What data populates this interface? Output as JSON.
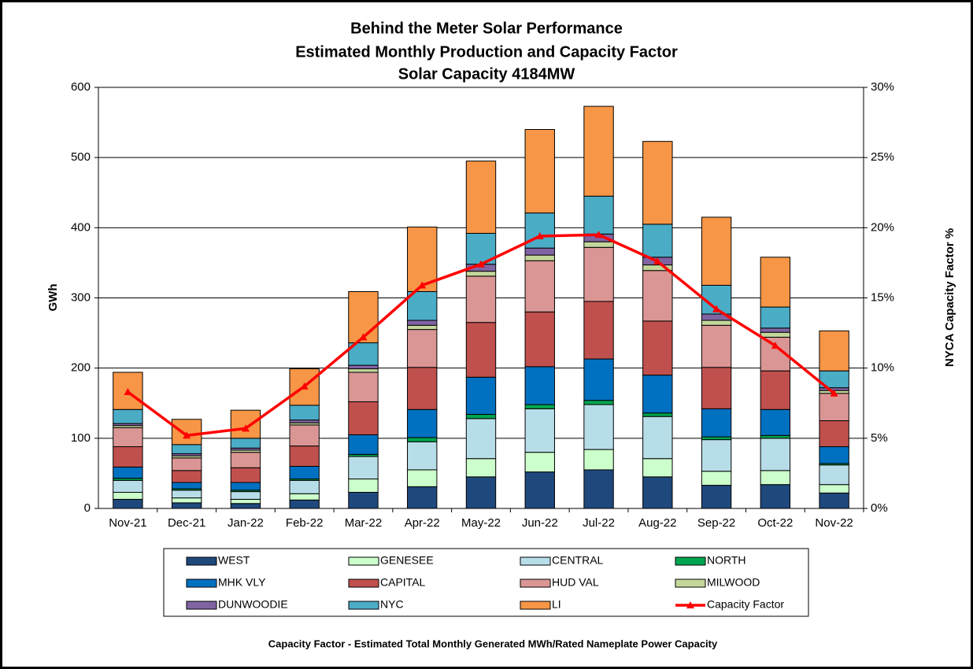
{
  "chart_data": {
    "type": "bar",
    "stacked": true,
    "title": [
      "Behind the Meter Solar Performance",
      "Estimated Monthly Production and Capacity Factor",
      "Solar Capacity 4184MW"
    ],
    "ylabel": "GWh",
    "y2label": "NYCA Capacity Factor %",
    "note": "Capacity Factor  - Estimated Total Monthly Generated MWh/Rated Nameplate Power Capacity",
    "categories": [
      "Nov-21",
      "Dec-21",
      "Jan-22",
      "Feb-22",
      "Mar-22",
      "Apr-22",
      "May-22",
      "Jun-22",
      "Jul-22",
      "Aug-22",
      "Sep-22",
      "Oct-22",
      "Nov-22"
    ],
    "ylim": [
      0,
      600
    ],
    "yticks": [
      0,
      100,
      200,
      300,
      400,
      500,
      600
    ],
    "y2lim": [
      0,
      30
    ],
    "y2ticks": [
      {
        "value": 0,
        "label": "0%"
      },
      {
        "value": 5,
        "label": "5%"
      },
      {
        "value": 10,
        "label": "10%"
      },
      {
        "value": 15,
        "label": "15%"
      },
      {
        "value": 20,
        "label": "20%"
      },
      {
        "value": 25,
        "label": "25%"
      },
      {
        "value": 30,
        "label": "30%"
      }
    ],
    "grid": true,
    "series": [
      {
        "name": "WEST",
        "color": "#1f497d",
        "values": [
          13,
          8,
          7,
          12,
          23,
          31,
          45,
          52,
          55,
          45,
          33,
          34,
          22
        ]
      },
      {
        "name": "GENESEE",
        "color": "#ccffcc",
        "values": [
          10,
          7,
          6,
          9,
          19,
          24,
          26,
          28,
          29,
          26,
          20,
          20,
          12
        ]
      },
      {
        "name": "CENTRAL",
        "color": "#b7dee8",
        "values": [
          17,
          11,
          11,
          19,
          32,
          40,
          57,
          62,
          64,
          60,
          45,
          46,
          28
        ]
      },
      {
        "name": "NORTH",
        "color": "#00a550",
        "values": [
          3,
          2,
          2,
          2,
          3,
          6,
          6,
          6,
          6,
          5,
          4,
          4,
          2
        ]
      },
      {
        "name": "MHK VLY",
        "color": "#0070c0",
        "values": [
          16,
          9,
          11,
          18,
          28,
          40,
          53,
          54,
          59,
          54,
          40,
          37,
          24
        ]
      },
      {
        "name": "CAPITAL",
        "color": "#c0504d",
        "values": [
          29,
          17,
          21,
          29,
          47,
          60,
          78,
          78,
          82,
          77,
          59,
          55,
          37
        ]
      },
      {
        "name": "HUD VAL",
        "color": "#da9694",
        "values": [
          27,
          18,
          22,
          30,
          42,
          54,
          66,
          73,
          77,
          72,
          60,
          48,
          39
        ]
      },
      {
        "name": "MILWOOD",
        "color": "#c4d79b",
        "values": [
          3,
          3,
          3,
          3,
          5,
          6,
          7,
          8,
          8,
          8,
          7,
          7,
          4
        ]
      },
      {
        "name": "DUNWOODIE",
        "color": "#8064a2",
        "values": [
          3,
          3,
          3,
          4,
          5,
          7,
          10,
          10,
          11,
          11,
          9,
          6,
          4
        ]
      },
      {
        "name": "NYC",
        "color": "#4bacc6",
        "values": [
          20,
          13,
          14,
          21,
          32,
          41,
          44,
          50,
          54,
          47,
          41,
          30,
          24
        ]
      },
      {
        "name": "LI",
        "color": "#f79646",
        "values": [
          53,
          36,
          40,
          52,
          73,
          92,
          103,
          119,
          128,
          118,
          97,
          71,
          57
        ]
      },
      {
        "name": "Capacity Factor",
        "type": "line",
        "axis": "y2",
        "color": "#ff0000",
        "values": [
          8.3,
          5.2,
          5.7,
          8.7,
          12.2,
          15.9,
          17.4,
          19.4,
          19.5,
          17.6,
          14.2,
          11.6,
          8.2
        ]
      }
    ]
  }
}
